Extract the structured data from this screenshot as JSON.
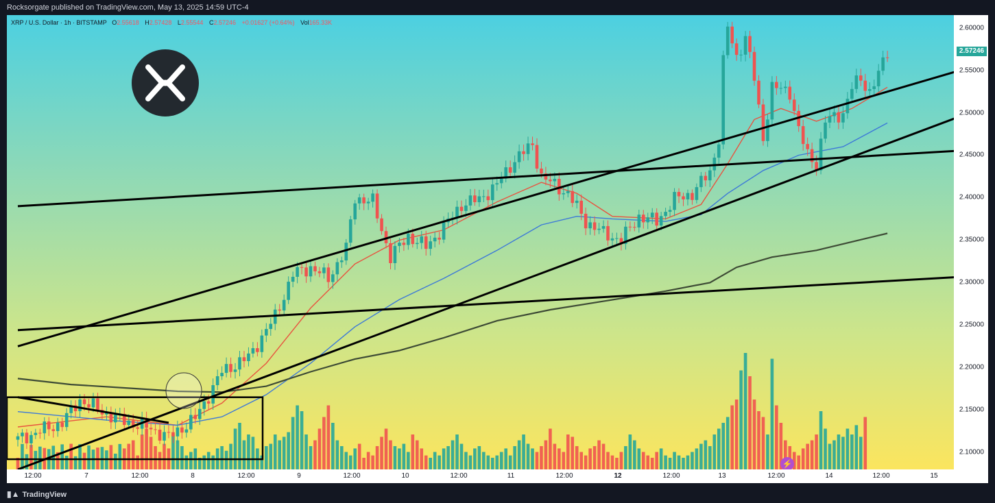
{
  "header": {
    "publish_text": "Rocksorgate published on TradingView.com, May 13, 2025 14:59 UTC-4"
  },
  "legend": {
    "symbol": "XRP / U.S. Dollar · 1h · BITSTAMP",
    "o_label": "O",
    "o": "2.55618",
    "h_label": "H",
    "h": "2.57428",
    "l_label": "L",
    "l": "2.55544",
    "c_label": "C",
    "c": "2.57246",
    "change": "+0.01627 (+0.64%)",
    "vol_label": "Vol",
    "vol": "165.33K"
  },
  "logo_icon": "xrp-logo-icon",
  "price_axis": {
    "ticks": [
      "2.60000",
      "2.55000",
      "2.50000",
      "2.45000",
      "2.40000",
      "2.35000",
      "2.30000",
      "2.25000",
      "2.20000",
      "2.15000",
      "2.10000"
    ],
    "last_price": "2.57246"
  },
  "time_axis": {
    "ticks": [
      {
        "label": "12:00",
        "bold": false
      },
      {
        "label": "7",
        "bold": false
      },
      {
        "label": "12:00",
        "bold": false
      },
      {
        "label": "8",
        "bold": false
      },
      {
        "label": "12:00",
        "bold": false
      },
      {
        "label": "9",
        "bold": false
      },
      {
        "label": "12:00",
        "bold": false
      },
      {
        "label": "10",
        "bold": false
      },
      {
        "label": "12:00",
        "bold": false
      },
      {
        "label": "11",
        "bold": false
      },
      {
        "label": "12:00",
        "bold": false
      },
      {
        "label": "12",
        "bold": true
      },
      {
        "label": "12:00",
        "bold": false
      },
      {
        "label": "13",
        "bold": false
      },
      {
        "label": "12:00",
        "bold": false
      },
      {
        "label": "14",
        "bold": false
      },
      {
        "label": "12:00",
        "bold": false
      },
      {
        "label": "15",
        "bold": false
      }
    ]
  },
  "footer": {
    "brand": "TradingView",
    "brand_icon": "tradingview-logo-icon"
  },
  "colors": {
    "up": "#26a69a",
    "down": "#ef5350",
    "ema_fast": "#e8533f",
    "ema_mid": "#3c78d8",
    "ema_slow": "#3d4a35"
  },
  "chart_data": {
    "type": "candlestick",
    "title": "XRP / U.S. Dollar · 1h · BITSTAMP",
    "ylim": [
      2.08,
      2.615
    ],
    "x_unit": "hours since May 6 06:00 (UTC-4)",
    "closes_anchors": [
      {
        "t": 0,
        "v": 2.115
      },
      {
        "t": 10,
        "v": 2.135
      },
      {
        "t": 14,
        "v": 2.162
      },
      {
        "t": 22,
        "v": 2.14
      },
      {
        "t": 30,
        "v": 2.128
      },
      {
        "t": 34,
        "v": 2.118
      },
      {
        "t": 40,
        "v": 2.14
      },
      {
        "t": 46,
        "v": 2.195
      },
      {
        "t": 52,
        "v": 2.212
      },
      {
        "t": 58,
        "v": 2.26
      },
      {
        "t": 62,
        "v": 2.31
      },
      {
        "t": 66,
        "v": 2.318
      },
      {
        "t": 70,
        "v": 2.305
      },
      {
        "t": 74,
        "v": 2.34
      },
      {
        "t": 76,
        "v": 2.4
      },
      {
        "t": 80,
        "v": 2.395
      },
      {
        "t": 84,
        "v": 2.33
      },
      {
        "t": 88,
        "v": 2.355
      },
      {
        "t": 92,
        "v": 2.342
      },
      {
        "t": 96,
        "v": 2.365
      },
      {
        "t": 100,
        "v": 2.392
      },
      {
        "t": 104,
        "v": 2.398
      },
      {
        "t": 108,
        "v": 2.415
      },
      {
        "t": 112,
        "v": 2.445
      },
      {
        "t": 116,
        "v": 2.462
      },
      {
        "t": 118,
        "v": 2.425
      },
      {
        "t": 120,
        "v": 2.418
      },
      {
        "t": 124,
        "v": 2.405
      },
      {
        "t": 128,
        "v": 2.372
      },
      {
        "t": 132,
        "v": 2.358
      },
      {
        "t": 136,
        "v": 2.35
      },
      {
        "t": 140,
        "v": 2.378
      },
      {
        "t": 144,
        "v": 2.372
      },
      {
        "t": 148,
        "v": 2.398
      },
      {
        "t": 152,
        "v": 2.405
      },
      {
        "t": 156,
        "v": 2.43
      },
      {
        "t": 158,
        "v": 2.47
      },
      {
        "t": 159,
        "v": 2.56
      },
      {
        "t": 160,
        "v": 2.6
      },
      {
        "t": 162,
        "v": 2.565
      },
      {
        "t": 164,
        "v": 2.59
      },
      {
        "t": 166,
        "v": 2.54
      },
      {
        "t": 168,
        "v": 2.47
      },
      {
        "t": 170,
        "v": 2.53
      },
      {
        "t": 174,
        "v": 2.525
      },
      {
        "t": 176,
        "v": 2.48
      },
      {
        "t": 178,
        "v": 2.45
      },
      {
        "t": 180,
        "v": 2.44
      },
      {
        "t": 182,
        "v": 2.49
      },
      {
        "t": 186,
        "v": 2.5
      },
      {
        "t": 188,
        "v": 2.53
      },
      {
        "t": 190,
        "v": 2.54
      },
      {
        "t": 192,
        "v": 2.525
      },
      {
        "t": 194,
        "v": 2.545
      },
      {
        "t": 196,
        "v": 2.572
      }
    ],
    "moving_averages": [
      {
        "name": "",
        "color": "#e8533f",
        "values": [
          {
            "t": 0,
            "v": 2.13
          },
          {
            "t": 20,
            "v": 2.142
          },
          {
            "t": 36,
            "v": 2.132
          },
          {
            "t": 46,
            "v": 2.158
          },
          {
            "t": 56,
            "v": 2.205
          },
          {
            "t": 66,
            "v": 2.27
          },
          {
            "t": 76,
            "v": 2.322
          },
          {
            "t": 86,
            "v": 2.35
          },
          {
            "t": 96,
            "v": 2.362
          },
          {
            "t": 108,
            "v": 2.395
          },
          {
            "t": 118,
            "v": 2.418
          },
          {
            "t": 126,
            "v": 2.405
          },
          {
            "t": 134,
            "v": 2.378
          },
          {
            "t": 146,
            "v": 2.375
          },
          {
            "t": 154,
            "v": 2.392
          },
          {
            "t": 160,
            "v": 2.44
          },
          {
            "t": 166,
            "v": 2.492
          },
          {
            "t": 172,
            "v": 2.505
          },
          {
            "t": 180,
            "v": 2.49
          },
          {
            "t": 188,
            "v": 2.505
          },
          {
            "t": 196,
            "v": 2.53
          }
        ]
      },
      {
        "name": "",
        "color": "#3c78d8",
        "values": [
          {
            "t": 0,
            "v": 2.148
          },
          {
            "t": 20,
            "v": 2.138
          },
          {
            "t": 36,
            "v": 2.132
          },
          {
            "t": 46,
            "v": 2.142
          },
          {
            "t": 56,
            "v": 2.168
          },
          {
            "t": 66,
            "v": 2.205
          },
          {
            "t": 76,
            "v": 2.248
          },
          {
            "t": 86,
            "v": 2.28
          },
          {
            "t": 96,
            "v": 2.305
          },
          {
            "t": 108,
            "v": 2.338
          },
          {
            "t": 118,
            "v": 2.368
          },
          {
            "t": 126,
            "v": 2.378
          },
          {
            "t": 134,
            "v": 2.375
          },
          {
            "t": 146,
            "v": 2.372
          },
          {
            "t": 154,
            "v": 2.38
          },
          {
            "t": 160,
            "v": 2.405
          },
          {
            "t": 168,
            "v": 2.432
          },
          {
            "t": 176,
            "v": 2.45
          },
          {
            "t": 186,
            "v": 2.46
          },
          {
            "t": 196,
            "v": 2.488
          }
        ]
      },
      {
        "name": "",
        "color": "#3d4a35",
        "values": [
          {
            "t": 0,
            "v": 2.187
          },
          {
            "t": 12,
            "v": 2.18
          },
          {
            "t": 24,
            "v": 2.176
          },
          {
            "t": 36,
            "v": 2.172
          },
          {
            "t": 46,
            "v": 2.171
          },
          {
            "t": 56,
            "v": 2.178
          },
          {
            "t": 66,
            "v": 2.195
          },
          {
            "t": 76,
            "v": 2.21
          },
          {
            "t": 86,
            "v": 2.22
          },
          {
            "t": 96,
            "v": 2.235
          },
          {
            "t": 108,
            "v": 2.255
          },
          {
            "t": 120,
            "v": 2.268
          },
          {
            "t": 132,
            "v": 2.278
          },
          {
            "t": 146,
            "v": 2.29
          },
          {
            "t": 156,
            "v": 2.3
          },
          {
            "t": 162,
            "v": 2.318
          },
          {
            "t": 170,
            "v": 2.33
          },
          {
            "t": 180,
            "v": 2.338
          },
          {
            "t": 196,
            "v": 2.358
          }
        ]
      }
    ],
    "trendlines": [
      {
        "t1": 0,
        "v1": 2.39,
        "t2": 234,
        "v2": 2.462
      },
      {
        "t1": 0,
        "v1": 2.244,
        "t2": 234,
        "v2": 2.313
      },
      {
        "t1": 0,
        "v1": 2.225,
        "t2": 234,
        "v2": 2.583
      },
      {
        "t1": 0,
        "v1": 2.08,
        "t2": 234,
        "v2": 2.538
      },
      {
        "t1": 0,
        "v1": 2.165,
        "t2": 34,
        "v2": 2.135
      }
    ],
    "volume_ref_max": 1,
    "volume_bars_approx": [
      0.18,
      0.22,
      0.25,
      0.12,
      0.3,
      0.35,
      0.28,
      0.2,
      0.15,
      0.22,
      0.18,
      0.3,
      0.25,
      0.2,
      0.12,
      0.15,
      0.18,
      0.1,
      0.12,
      0.15,
      0.12,
      0.18,
      0.2,
      0.16,
      0.22,
      0.35,
      0.4,
      0.25,
      0.3,
      0.28,
      0.18,
      0.12,
      0.2,
      0.22,
      0.3,
      0.25,
      0.28,
      0.32,
      0.45,
      0.55,
      0.5,
      0.3,
      0.2,
      0.25,
      0.35,
      0.45,
      0.55,
      0.4,
      0.25,
      0.2,
      0.15,
      0.12,
      0.18,
      0.22,
      0.1,
      0.15,
      0.12,
      0.2,
      0.28,
      0.35,
      0.25,
      0.2,
      0.18,
      0.22,
      0.15,
      0.3,
      0.25,
      0.18,
      0.12,
      0.1,
      0.15,
      0.12,
      0.18,
      0.2,
      0.25,
      0.3,
      0.22,
      0.15,
      0.12,
      0.18,
      0.2,
      0.15,
      0.12,
      0.1,
      0.12,
      0.15,
      0.18,
      0.12,
      0.2,
      0.25,
      0.3,
      0.22,
      0.18,
      0.15,
      0.2,
      0.25,
      0.35,
      0.22,
      0.18,
      0.15,
      0.3,
      0.28,
      0.2,
      0.15,
      0.12,
      0.18,
      0.2,
      0.25,
      0.22,
      0.15,
      0.12,
      0.1,
      0.15,
      0.2,
      0.3,
      0.25,
      0.18,
      0.15,
      0.12,
      0.1,
      0.15,
      0.18,
      0.12,
      0.1,
      0.15,
      0.12,
      0.1,
      0.12,
      0.15,
      0.18,
      0.22,
      0.25,
      0.2,
      0.3,
      0.35,
      0.4,
      0.45,
      0.55,
      0.6,
      0.85,
      1.0,
      0.8,
      0.6,
      0.5,
      0.45,
      0.3,
      0.95,
      0.55,
      0.4,
      0.25,
      0.2,
      0.15,
      0.12,
      0.18,
      0.22,
      0.25,
      0.3,
      0.5,
      0.35,
      0.22,
      0.25,
      0.3,
      0.28,
      0.35,
      0.3,
      0.38,
      0.28,
      0.45
    ]
  }
}
